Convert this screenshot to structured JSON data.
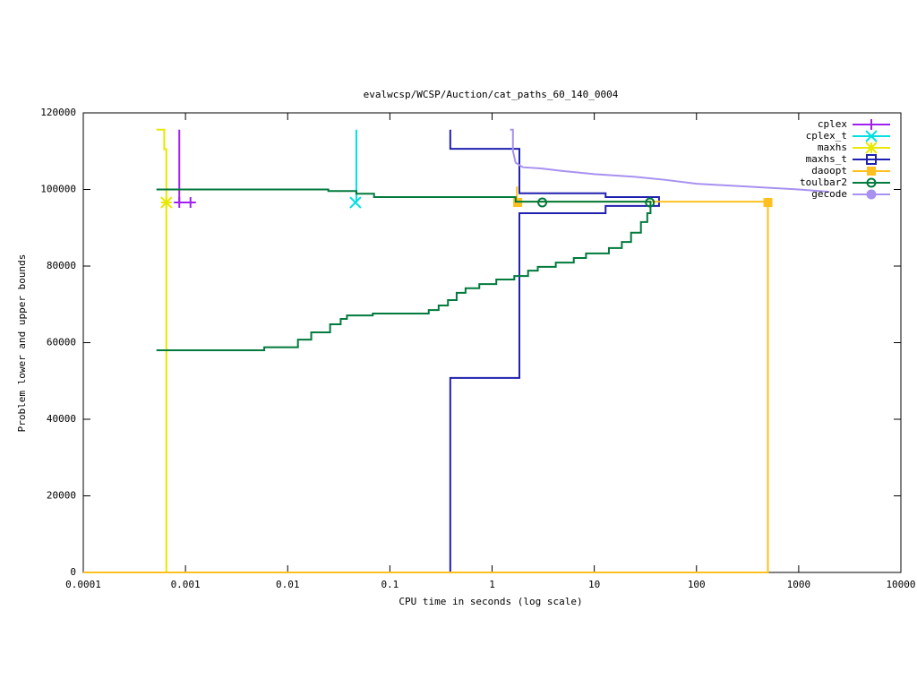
{
  "chart_data": {
    "type": "line",
    "title": "evalwcsp/WCSP/Auction/cat_paths_60_140_0004",
    "x_label": "CPU time in seconds (log scale)",
    "y_label": "Problem lower and upper bounds",
    "x_log": true,
    "xlim": [
      0.0001,
      10000
    ],
    "xticks": [
      0.0001,
      0.001,
      0.01,
      0.1,
      1,
      10,
      100,
      1000,
      10000
    ],
    "ylim": [
      0,
      120000
    ],
    "yticks": [
      0,
      20000,
      40000,
      60000,
      80000,
      100000,
      120000
    ],
    "legend": "top right",
    "series": [
      {
        "name": "cplex",
        "color": "#a020f0",
        "marker": "plus",
        "lines": [
          {
            "x": [
              0.00087,
              0.00087,
              0.00112
            ],
            "values": [
              115600,
              96600,
              96600
            ]
          }
        ],
        "points": {
          "x": [
            0.00087,
            0.00112
          ],
          "values": [
            96600,
            96600
          ]
        }
      },
      {
        "name": "cplex_t",
        "color": "#00e0e0",
        "marker": "cross",
        "lines": [
          {
            "x": [
              0.047,
              0.047
            ],
            "values": [
              115600,
              96600
            ]
          }
        ],
        "points": {
          "x": [
            0.046
          ],
          "values": [
            96600
          ]
        }
      },
      {
        "name": "maxhs",
        "color": "#e8e800",
        "marker": "star",
        "lines": [
          {
            "x": [
              0.00052,
              0.00062,
              0.00062,
              0.00065,
              0.00065
            ],
            "values": [
              115600,
              115600,
              110500,
              110500,
              0
            ]
          }
        ],
        "points": {
          "x": [
            0.00065
          ],
          "values": [
            96600
          ]
        }
      },
      {
        "name": "maxhs_t",
        "color": "#2020b0",
        "marker": "square",
        "lines": [
          {
            "x": [
              0.39,
              0.39,
              1.85,
              1.85,
              12.9,
              12.9,
              43,
              43
            ],
            "values": [
              115600,
              110600,
              110600,
              99000,
              99000,
              98000,
              98000,
              96800
            ]
          },
          {
            "x": [
              0.39,
              0.39,
              1.85,
              1.85,
              12.9,
              12.9,
              43,
              43
            ],
            "values": [
              0,
              50800,
              50800,
              93800,
              93800,
              95700,
              95700,
              96800
            ]
          }
        ]
      },
      {
        "name": "daoopt",
        "color": "#ffc020",
        "marker": "filled-square",
        "lines": [
          {
            "x": [
              0.0001,
              500,
              500,
              500
            ],
            "values": [
              0,
              0,
              77000,
              96800
            ]
          },
          {
            "x": [
              1.75,
              1.75,
              500
            ],
            "values": [
              100800,
              96800,
              96800
            ]
          }
        ],
        "points": {
          "x": [
            1.78,
            500
          ],
          "values": [
            96600,
            96600
          ]
        }
      },
      {
        "name": "toulbar2",
        "color": "#007a3d",
        "marker": "circle",
        "lines": [
          {
            "x": [
              0.00052,
              0.025,
              0.025,
              0.047,
              0.047,
              0.07,
              0.07,
              1.7,
              1.7,
              36
            ],
            "values": [
              100000,
              100000,
              99600,
              99600,
              98900,
              98900,
              98000,
              98000,
              96800,
              96800
            ]
          },
          {
            "x": [
              0.00052,
              0.0059,
              0.0059,
              0.0126,
              0.0126,
              0.017,
              0.017,
              0.026,
              0.026,
              0.033,
              0.033,
              0.038,
              0.038,
              0.068,
              0.068,
              0.24,
              0.24,
              0.3,
              0.3,
              0.37,
              0.37,
              0.45,
              0.45,
              0.55,
              0.55,
              0.75,
              0.75,
              1.1,
              1.1,
              1.65,
              1.65,
              2.25,
              2.25,
              2.8,
              2.8,
              4.2,
              4.2,
              6.3,
              6.3,
              8.3,
              8.3,
              13.9,
              13.9,
              18.6,
              18.6,
              22.9,
              22.9,
              28.6,
              28.6,
              33,
              33,
              35.5,
              35.5
            ],
            "values": [
              58000,
              58000,
              58800,
              58800,
              60800,
              60800,
              62700,
              62700,
              64800,
              64800,
              66200,
              66200,
              67100,
              67100,
              67600,
              67600,
              68500,
              68500,
              69700,
              69700,
              71100,
              71100,
              73000,
              73000,
              74200,
              74200,
              75300,
              75300,
              76500,
              76500,
              77400,
              77400,
              78800,
              78800,
              79800,
              79800,
              80900,
              80900,
              82100,
              82100,
              83300,
              83300,
              84700,
              84700,
              86300,
              86300,
              88700,
              88700,
              91500,
              91500,
              93800,
              93800,
              96800
            ]
          }
        ],
        "points": {
          "x": [
            3.1,
            35
          ],
          "values": [
            96600,
            96600
          ]
        }
      },
      {
        "name": "gecode",
        "color": "#a891f0",
        "marker": "filled-circle",
        "lines": [
          {
            "x": [
              1.5,
              1.6,
              1.6,
              1.7,
              2,
              3,
              5,
              10,
              25,
              50,
              100,
              300,
              1000,
              2000
            ],
            "values": [
              115600,
              115600,
              110000,
              107000,
              105800,
              105500,
              104800,
              104000,
              103300,
              102500,
              101500,
              100800,
              100000,
              99400
            ]
          }
        ]
      }
    ]
  }
}
